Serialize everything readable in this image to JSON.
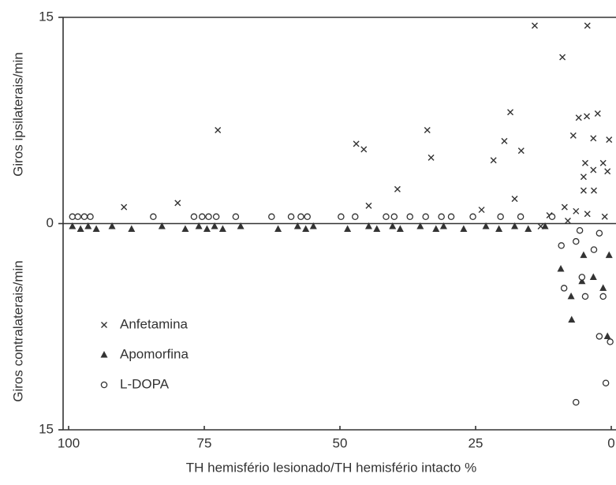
{
  "chart_data": {
    "type": "scatter",
    "ylabel_top": "Giros ipsilaterais/min",
    "ylabel_bottom": "Giros contralaterais/min",
    "xlabel": "TH hemisfério lesionado/TH hemisfério intacto  %",
    "xlim": [
      100,
      0
    ],
    "ylim": [
      -15,
      15
    ],
    "xticks": [
      100,
      75,
      50,
      25,
      0
    ],
    "yticks": [
      {
        "value": -15,
        "label": "15"
      },
      0,
      15
    ],
    "grid": false,
    "legend": "lower left",
    "series": [
      {
        "name": "Anfetamina",
        "color": "#333333",
        "marker": "x",
        "x": [
          14.1,
          4.4,
          9,
          72.5,
          47,
          45.6,
          33.9,
          33.2,
          39.4,
          44.7,
          89.8,
          79.9,
          18.6,
          19.7,
          16.6,
          21.7,
          17.8,
          23.9,
          11.4,
          8.6,
          7,
          6,
          4.5,
          2.5,
          3.3,
          0.4,
          4.8,
          3.3,
          5.1,
          1.5,
          0.7,
          5.1,
          3.2,
          1.2,
          6.5,
          4.4,
          13,
          8
        ],
        "values": [
          14.4,
          14.4,
          12.1,
          6.8,
          5.8,
          5.4,
          6.8,
          4.8,
          2.5,
          1.3,
          1.2,
          1.5,
          8.1,
          6,
          5.3,
          4.6,
          1.8,
          1,
          0.6,
          1.2,
          6.4,
          7.7,
          7.8,
          8,
          6.2,
          6.1,
          4.4,
          3.9,
          3.4,
          4.4,
          3.8,
          2.4,
          2.4,
          0.5,
          0.9,
          0.7,
          -0.2,
          0.2
        ]
      },
      {
        "name": "Apomorfina",
        "color": "#333333",
        "marker": "triangle",
        "x": [
          99.3,
          97.8,
          96.4,
          94.9,
          92,
          88.4,
          82.8,
          78.5,
          76,
          74.5,
          73.1,
          71.6,
          68.3,
          61.4,
          57.8,
          56.3,
          54.9,
          48.6,
          44.7,
          43.2,
          40.3,
          38.9,
          35.2,
          32.3,
          30.9,
          27.2,
          23.1,
          20.7,
          17.8,
          15.3,
          12.2,
          9.3,
          7.4,
          5.4,
          3.3,
          5.1,
          1.5,
          0.4,
          0.7,
          7.3
        ],
        "values": [
          -0.2,
          -0.4,
          -0.2,
          -0.4,
          -0.2,
          -0.4,
          -0.2,
          -0.4,
          -0.2,
          -0.4,
          -0.2,
          -0.4,
          -0.2,
          -0.4,
          -0.2,
          -0.4,
          -0.2,
          -0.4,
          -0.2,
          -0.4,
          -0.2,
          -0.4,
          -0.2,
          -0.4,
          -0.2,
          -0.4,
          -0.2,
          -0.4,
          -0.2,
          -0.4,
          -0.2,
          -3.3,
          -5.3,
          -4.2,
          -3.9,
          -2.3,
          -4.7,
          -2.3,
          -8.2,
          -7
        ]
      },
      {
        "name": "L-DOPA",
        "color": "#333333",
        "marker": "circle",
        "x": [
          99.3,
          98.3,
          97.1,
          96,
          84.4,
          76.9,
          75.4,
          74.2,
          72.8,
          69.2,
          62.6,
          59,
          57.2,
          56,
          49.8,
          47.2,
          41.5,
          40,
          37.1,
          34.2,
          31.3,
          29.5,
          25.5,
          20.4,
          16.7,
          10.9,
          9.2,
          8.7,
          4.8,
          5.4,
          6.5,
          5.8,
          2.2,
          1.5,
          2.2,
          1,
          6.5,
          0.2,
          3.2
        ],
        "values": [
          0.5,
          0.5,
          0.5,
          0.5,
          0.5,
          0.5,
          0.5,
          0.5,
          0.5,
          0.5,
          0.5,
          0.5,
          0.5,
          0.5,
          0.5,
          0.5,
          0.5,
          0.5,
          0.5,
          0.5,
          0.5,
          0.5,
          0.5,
          0.5,
          0.5,
          0.5,
          -1.6,
          -4.7,
          -5.3,
          -3.9,
          -1.3,
          -0.5,
          -0.7,
          -5.3,
          -8.2,
          -11.6,
          -13,
          -8.6,
          -1.9
        ]
      }
    ]
  }
}
